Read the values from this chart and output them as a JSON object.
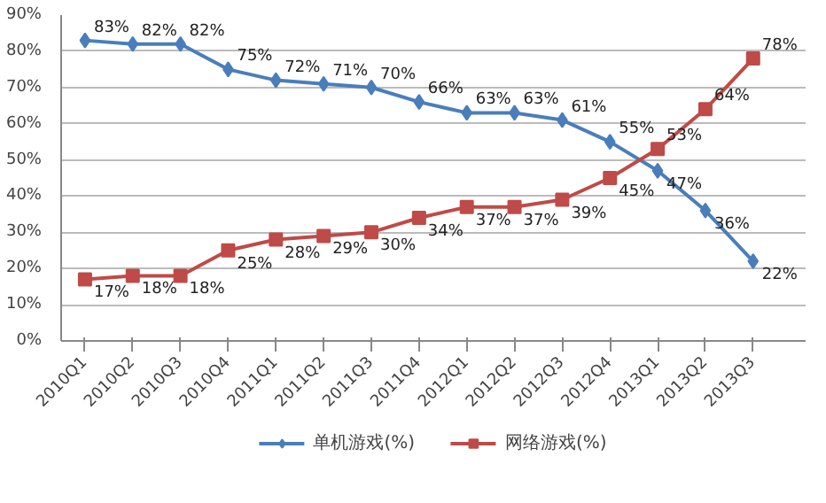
{
  "chart_data": {
    "type": "line",
    "categories": [
      "2010Q1",
      "2010Q2",
      "2010Q3",
      "2010Q4",
      "2011Q1",
      "2011Q2",
      "2011Q3",
      "2011Q4",
      "2012Q1",
      "2012Q2",
      "2012Q3",
      "2012Q4",
      "2013Q1",
      "2013Q2",
      "2013Q3"
    ],
    "series": [
      {
        "name": "单机游戏(%)",
        "color": "#4a7ebb",
        "marker": "diamond",
        "values": [
          83,
          82,
          82,
          75,
          72,
          71,
          70,
          66,
          63,
          63,
          61,
          55,
          47,
          36,
          22
        ],
        "value_labels": [
          "83%",
          "82%",
          "82%",
          "75%",
          "72%",
          "71%",
          "70%",
          "66%",
          "63%",
          "63%",
          "61%",
          "55%",
          "47%",
          "36%",
          "22%"
        ]
      },
      {
        "name": "网络游戏(%)",
        "color": "#be4b48",
        "marker": "square",
        "values": [
          17,
          18,
          18,
          25,
          28,
          29,
          30,
          34,
          37,
          37,
          39,
          45,
          53,
          64,
          78
        ],
        "value_labels": [
          "17%",
          "18%",
          "18%",
          "25%",
          "28%",
          "29%",
          "30%",
          "34%",
          "37%",
          "37%",
          "39%",
          "45%",
          "53%",
          "64%",
          "78%"
        ]
      }
    ],
    "ylim": [
      0,
      90
    ],
    "yticks": [
      {
        "value": 0,
        "label": "0%"
      },
      {
        "value": 10,
        "label": "10%"
      },
      {
        "value": 20,
        "label": "20%"
      },
      {
        "value": 30,
        "label": "30%"
      },
      {
        "value": 40,
        "label": "40%"
      },
      {
        "value": 50,
        "label": "50%"
      },
      {
        "value": 60,
        "label": "60%"
      },
      {
        "value": 70,
        "label": "70%"
      },
      {
        "value": 80,
        "label": "80%"
      },
      {
        "value": 90,
        "label": "90%"
      }
    ],
    "data_labels": true,
    "grid": "y",
    "legend": "bottom",
    "line_style": "solid"
  }
}
